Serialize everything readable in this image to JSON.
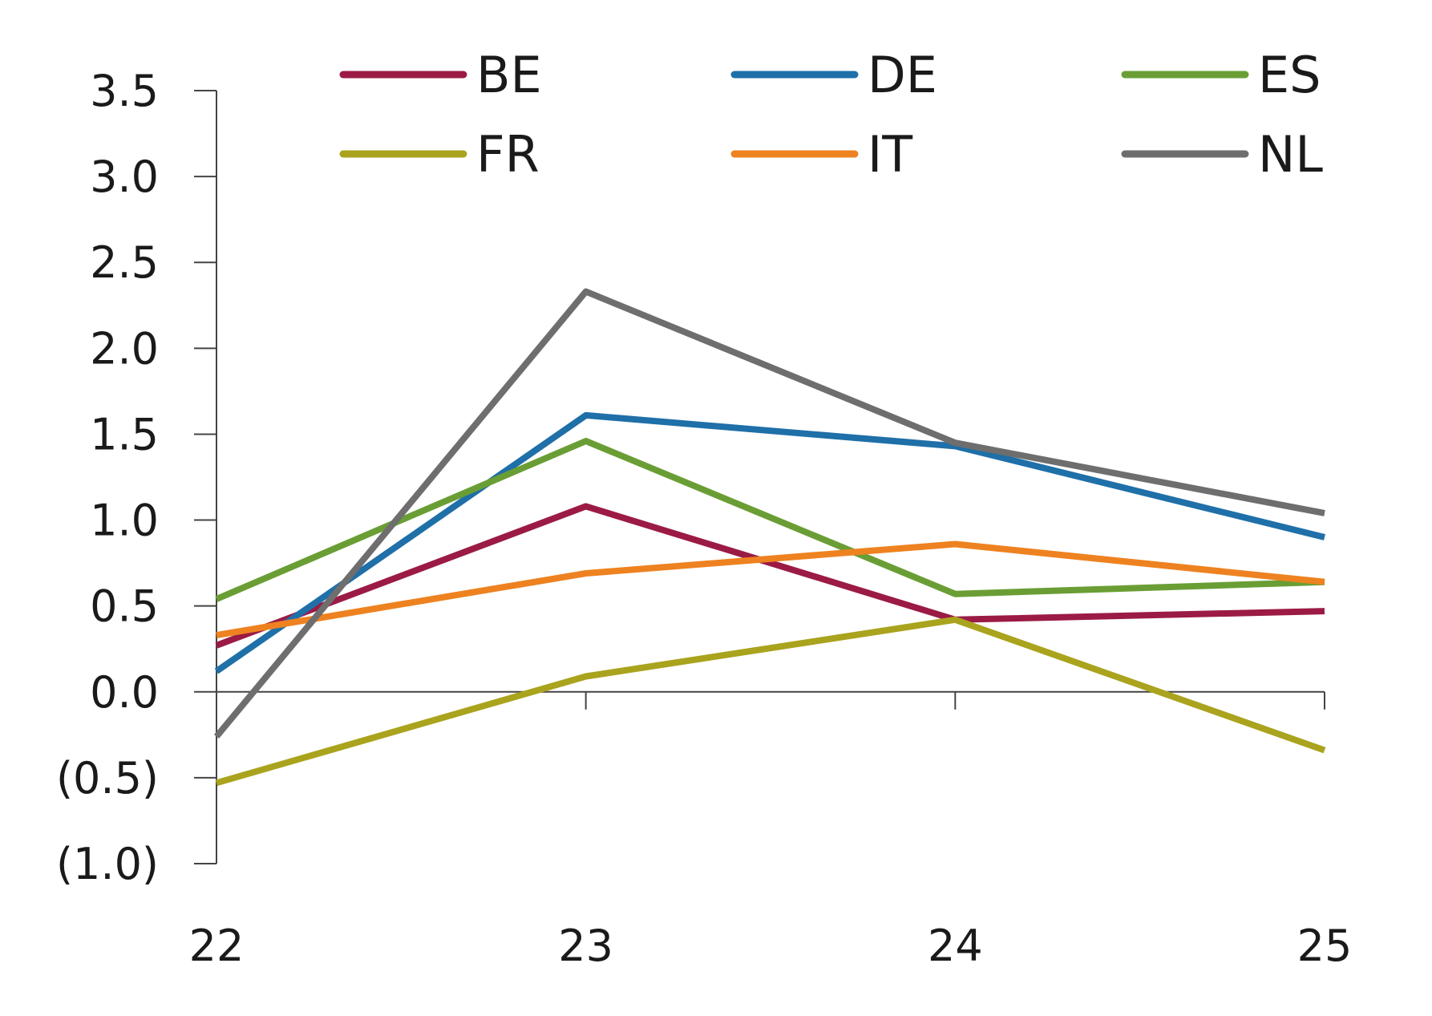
{
  "chart_data": {
    "type": "line",
    "title": "",
    "xlabel": "",
    "ylabel": "",
    "x": [
      "22",
      "23",
      "24",
      "25"
    ],
    "ylim": [
      -1.0,
      3.5
    ],
    "y_ticks": [
      3.5,
      3.0,
      2.5,
      2.0,
      1.5,
      1.0,
      0.5,
      0.0,
      -0.5,
      -1.0
    ],
    "y_tick_labels": [
      "3.5",
      "3.0",
      "2.5",
      "2.0",
      "1.5",
      "1.0",
      "0.5",
      "0.0",
      "(0.5)",
      "(1.0)"
    ],
    "grid": false,
    "legend_position": "top",
    "series": [
      {
        "name": "BE",
        "color": "#9b1b45",
        "values": [
          0.27,
          1.08,
          0.42,
          0.47
        ]
      },
      {
        "name": "DE",
        "color": "#1f6fa8",
        "values": [
          0.12,
          1.61,
          1.43,
          0.9
        ]
      },
      {
        "name": "ES",
        "color": "#6a9e35",
        "values": [
          0.54,
          1.46,
          0.57,
          0.64
        ]
      },
      {
        "name": "FR",
        "color": "#aaa31d",
        "values": [
          -0.53,
          0.09,
          0.42,
          -0.34
        ]
      },
      {
        "name": "IT",
        "color": "#ee8220",
        "values": [
          0.33,
          0.69,
          0.86,
          0.64
        ]
      },
      {
        "name": "NL",
        "color": "#6e6e6e",
        "values": [
          -0.26,
          2.33,
          1.45,
          1.04
        ]
      }
    ]
  }
}
